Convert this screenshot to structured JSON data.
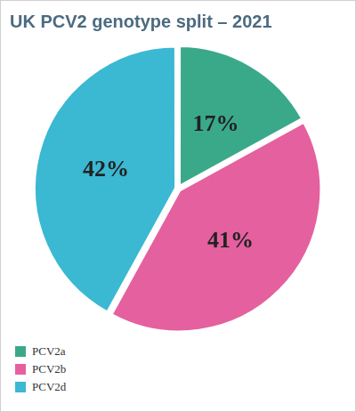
{
  "chart_data": {
    "type": "pie",
    "title": "UK PCV2 genotype split – 2021",
    "categories": [
      "PCV2a",
      "PCV2b",
      "PCV2d"
    ],
    "values": [
      17,
      41,
      42
    ],
    "value_labels": [
      "17%",
      "41%",
      "42%"
    ],
    "colors": [
      "#3aa98a",
      "#e5609e",
      "#3bb8d2"
    ],
    "data_labels": true,
    "legend": "bottom-left"
  }
}
